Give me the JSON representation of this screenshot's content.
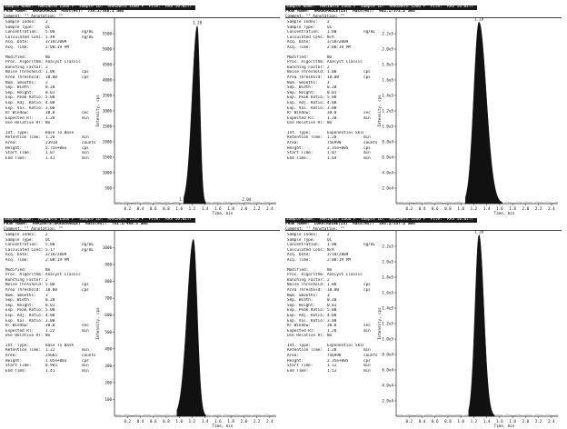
{
  "chart_data": [
    {
      "type": "line",
      "header": {
        "line1": "Sample Name: \"MARINATE LOGO F\" Sample ID: \"MARINATE LOGO F\" File: \"RAS 16.wiff\"",
        "line2": "Peak Name: \"GRADOMAOLE\" Mass(es): \"735.2/358.1 amu\"",
        "comment": "Comment: \"\"  Annotation: \"\""
      },
      "info_top": [
        [
          "Sample Index:",
          "2",
          ""
        ],
        [
          "Sample Type:",
          "QC",
          ""
        ],
        [
          "Concentration:",
          "5.00",
          "ng/mL"
        ],
        [
          "Calculated Conc:",
          "5.49",
          "ng/mL"
        ],
        [
          "Acq. Date:",
          "3/18/2009",
          ""
        ],
        [
          "Acq. Time:",
          "2:00:19 PM",
          ""
        ]
      ],
      "info_mid": [
        [
          "Modified:",
          "No",
          ""
        ],
        [
          "Proc. Algorithm:",
          "Analyst Classic",
          ""
        ],
        [
          "Bunching Factor:",
          "2",
          ""
        ],
        [
          "Noise Threshold:",
          "1.00",
          "cps"
        ],
        [
          "Area Threshold:",
          "10.00",
          "cps"
        ],
        [
          "Num. Smooths:",
          "3",
          ""
        ],
        [
          "Sep. Width:",
          "0.20",
          ""
        ],
        [
          "Sep. Height:",
          "0.01",
          ""
        ],
        [
          "Exp. Peak Ratio:",
          "5.00",
          ""
        ],
        [
          "Exp. Adj. Ratio:",
          "4.00",
          ""
        ],
        [
          "Exp. Val. Ratio:",
          "3.00",
          ""
        ],
        [
          "RT Window:",
          "30.0",
          "sec"
        ],
        [
          "Expected RT:",
          "1.28",
          "min"
        ],
        [
          "Use Relative RT:",
          "No",
          ""
        ]
      ],
      "info_bot": [
        [
          "Int. Type:",
          "Base To Base",
          ""
        ],
        [
          "Retention Time:",
          "1.28",
          "min"
        ],
        [
          "Area:",
          "23918",
          "counts"
        ],
        [
          "Height:",
          "5.75e+003",
          "cps"
        ],
        [
          "Start Time:",
          "1.07",
          "min"
        ],
        [
          "End Time:",
          "1.41",
          "min"
        ]
      ],
      "ylabel": "Intensity, cps",
      "xlabel": "Time, min",
      "xlim": [
        0.0,
        2.5
      ],
      "ylim": [
        0,
        6000
      ],
      "x_ticks": [
        "0.2",
        "0.4",
        "0.6",
        "0.8",
        "1.0",
        "1.2",
        "1.4",
        "1.6",
        "1.8",
        "2.0",
        "2.2",
        "2.4"
      ],
      "y_ticks": [
        "500",
        "1000",
        "1500",
        "2000",
        "2500",
        "3000",
        "3500",
        "4000",
        "4500",
        "5000",
        "5500"
      ],
      "peak": {
        "rt": 1.28,
        "height": 5750,
        "start": 1.07,
        "end": 1.41
      },
      "peak_labels": [
        {
          "x": 1.28,
          "text": "1.28"
        },
        {
          "x": 1.07,
          "text": "1.07"
        },
        {
          "x": 2.04,
          "text": "2.04"
        }
      ]
    },
    {
      "type": "line",
      "header": {
        "line1": "Sample Name: \"MARINATE LOGO F\" Sample ID: \"MARINATE LOGO F\" File: \"RAS 16.wiff\"",
        "line2": "Peak Name: \"GRADOMAOLE(IS)\" Mass(es): \"901.1/372.2 amu\"",
        "comment": "Comment: \"\"  Annotation: \"\""
      },
      "info_top": [
        [
          "Sample Index:",
          "2",
          ""
        ],
        [
          "Sample Type:",
          "QC",
          ""
        ],
        [
          "Concentration:",
          "1.00",
          "ng/mL"
        ],
        [
          "Calculated Conc:",
          "N/A",
          ""
        ],
        [
          "Acq. Date:",
          "3/18/2009",
          ""
        ],
        [
          "Acq. Time:",
          "2:00:19 PM",
          ""
        ]
      ],
      "info_mid": [
        [
          "Modified:",
          "No",
          ""
        ],
        [
          "Proc. Algorithm:",
          "Analyst Classic",
          ""
        ],
        [
          "Bunching Factor:",
          "2",
          ""
        ],
        [
          "Noise Threshold:",
          "1.00",
          "cps"
        ],
        [
          "Area Threshold:",
          "10.00",
          "cps"
        ],
        [
          "Num. Smooths:",
          "3",
          ""
        ],
        [
          "Sep. Width:",
          "0.20",
          ""
        ],
        [
          "Sep. Height:",
          "0.01",
          ""
        ],
        [
          "Exp. Peak Ratio:",
          "5.00",
          ""
        ],
        [
          "Exp. Adj. Ratio:",
          "4.00",
          ""
        ],
        [
          "Exp. Val. Ratio:",
          "3.00",
          ""
        ],
        [
          "RT Window:",
          "30.0",
          "sec"
        ],
        [
          "Expected RT:",
          "1.28",
          "min"
        ],
        [
          "Use Relative RT:",
          "No",
          ""
        ]
      ],
      "info_bot": [
        [
          "Int. Type:",
          "Exponential Skim",
          ""
        ],
        [
          "Retention Time:",
          "1.28",
          "min"
        ],
        [
          "Area:",
          "756990",
          "counts"
        ],
        [
          "Height:",
          "2.35e+005",
          "cps"
        ],
        [
          "Start Time:",
          "1.07",
          "min"
        ],
        [
          "End Time:",
          "1.64",
          "min"
        ]
      ],
      "ylabel": "Intensity, cps",
      "xlabel": "Time, min",
      "xlim": [
        0.0,
        2.5
      ],
      "ylim": [
        0,
        240000
      ],
      "x_ticks": [
        "0.2",
        "0.4",
        "0.6",
        "0.8",
        "1.0",
        "1.2",
        "1.4",
        "1.6",
        "1.8",
        "2.0",
        "2.2",
        "2.4"
      ],
      "y_ticks": [
        "2.0e4",
        "4.0e4",
        "6.0e4",
        "8.0e4",
        "1.0e5",
        "1.2e5",
        "1.4e5",
        "1.6e5",
        "1.8e5",
        "2.0e5",
        "2.2e5"
      ],
      "peak": {
        "rt": 1.28,
        "height": 235000,
        "start": 1.07,
        "end": 1.64
      },
      "peak_labels": [
        {
          "x": 1.28,
          "text": "1.28"
        }
      ]
    },
    {
      "type": "line",
      "header": {
        "line1": "Sample Name: \"MARINATE LOGO F\" Sample ID: \"MARINATE LOGO F\" File: \"RAS 16.wiff\"",
        "line2": "Peak Name: \"MARINATE(GRADOMAOLE)\" Mass(es): \"751.2/458.3 amu\"",
        "comment": "Comment: \"\"  Annotation: \"\""
      },
      "info_top": [
        [
          "Sample Index:",
          "2",
          ""
        ],
        [
          "Sample Type:",
          "QC",
          ""
        ],
        [
          "Concentration:",
          "5.00",
          "ng/mL"
        ],
        [
          "Calculated Conc:",
          "5.17",
          "ng/mL"
        ],
        [
          "Acq. Date:",
          "3/18/2009",
          ""
        ],
        [
          "Acq. Time:",
          "2:00:19 PM",
          ""
        ]
      ],
      "info_mid": [
        [
          "Modified:",
          "No",
          ""
        ],
        [
          "Proc. Algorithm:",
          "Analyst Classic",
          ""
        ],
        [
          "Bunching Factor:",
          "2",
          ""
        ],
        [
          "Noise Threshold:",
          "5.00",
          "cps"
        ],
        [
          "Area Threshold:",
          "10.00",
          "cps"
        ],
        [
          "Num. Smooths:",
          "3",
          ""
        ],
        [
          "Sep. Width:",
          "0.20",
          ""
        ],
        [
          "Sep. Height:",
          "0.01",
          ""
        ],
        [
          "Exp. Peak Ratio:",
          "5.00",
          ""
        ],
        [
          "Exp. Adj. Ratio:",
          "4.00",
          ""
        ],
        [
          "Exp. Val. Ratio:",
          "3.00",
          ""
        ],
        [
          "RT Window:",
          "30.0",
          "sec"
        ],
        [
          "Expected RT:",
          "1.22",
          "min"
        ],
        [
          "Use Relative RT:",
          "No",
          ""
        ]
      ],
      "info_bot": [
        [
          "Int. Type:",
          "Base To Base",
          ""
        ],
        [
          "Retention Time:",
          "1.22",
          "min"
        ],
        [
          "Area:",
          "25665",
          "counts"
        ],
        [
          "Height:",
          "1.05e+003",
          "cps"
        ],
        [
          "Start Time:",
          "0.965",
          "min"
        ],
        [
          "End Time:",
          "1.41",
          "min"
        ]
      ],
      "ylabel": "Intensity, cps",
      "xlabel": "Time, min",
      "xlim": [
        0.0,
        2.5
      ],
      "ylim": [
        0,
        1100
      ],
      "x_ticks": [
        "0.2",
        "0.4",
        "0.6",
        "0.8",
        "1.0",
        "1.2",
        "1.4",
        "1.6",
        "1.8",
        "2.0",
        "2.2",
        "2.4"
      ],
      "y_ticks": [
        "100",
        "200",
        "300",
        "400",
        "500",
        "600",
        "700",
        "800",
        "900",
        "1000"
      ],
      "peak": {
        "rt": 1.22,
        "height": 1050,
        "start": 0.965,
        "end": 1.41
      },
      "peak_labels": []
    },
    {
      "type": "line",
      "header": {
        "line1": "Sample Name: \"MARINATE LOGO F\" Sample ID: \"MARINATE LOGO F\" File: \"RAS 16.wiff\"",
        "line2": "Peak Name: \"LORATADINE(IS)\" Mass(es): \"383.1/337.2 amu\"",
        "comment": "Comment: \"\"  Annotation: \"\""
      },
      "info_top": [
        [
          "Sample Index:",
          "2",
          ""
        ],
        [
          "Sample Type:",
          "QC",
          ""
        ],
        [
          "Concentration:",
          "1.00",
          "ng/mL"
        ],
        [
          "Calculated Conc:",
          "N/A",
          ""
        ],
        [
          "Acq. Date:",
          "3/18/2009",
          ""
        ],
        [
          "Acq. Time:",
          "2:00:19 PM",
          ""
        ]
      ],
      "info_mid": [
        [
          "Modified:",
          "No",
          ""
        ],
        [
          "Proc. Algorithm:",
          "Analyst Classic",
          ""
        ],
        [
          "Bunching Factor:",
          "2",
          ""
        ],
        [
          "Noise Threshold:",
          "1.00",
          "cps"
        ],
        [
          "Area Threshold:",
          "10.00",
          "cps"
        ],
        [
          "Num. Smooths:",
          "3",
          ""
        ],
        [
          "Sep. Width:",
          "0.20",
          ""
        ],
        [
          "Sep. Height:",
          "0.01",
          ""
        ],
        [
          "Exp. Peak Ratio:",
          "5.00",
          ""
        ],
        [
          "Exp. Adj. Ratio:",
          "4.00",
          ""
        ],
        [
          "Exp. Val. Ratio:",
          "3.00",
          ""
        ],
        [
          "RT Window:",
          "30.0",
          "sec"
        ],
        [
          "Expected RT:",
          "1.28",
          "min"
        ],
        [
          "Use Relative RT:",
          "No",
          ""
        ]
      ],
      "info_bot": [
        [
          "Int. Type:",
          "Exponential Skim",
          ""
        ],
        [
          "Retention Time:",
          "1.28",
          "min"
        ],
        [
          "Area:",
          "756990",
          "counts"
        ],
        [
          "Height:",
          "2.35e+005",
          "cps"
        ],
        [
          "Start Time:",
          "1.12",
          "min"
        ],
        [
          "End Time:",
          "1.52",
          "min"
        ]
      ],
      "ylabel": "Intensity, cps",
      "xlabel": "Time, min",
      "xlim": [
        0.0,
        2.5
      ],
      "ylim": [
        0,
        240000
      ],
      "x_ticks": [
        "0.2",
        "0.4",
        "0.6",
        "0.8",
        "1.0",
        "1.2",
        "1.4",
        "1.6",
        "1.8",
        "2.0",
        "2.2",
        "2.4"
      ],
      "y_ticks": [
        "2.0e4",
        "4.0e4",
        "6.0e4",
        "8.0e4",
        "1.0e5",
        "1.2e5",
        "1.4e5",
        "1.6e5",
        "1.8e5",
        "2.0e5",
        "2.2e5"
      ],
      "peak": {
        "rt": 1.28,
        "height": 235000,
        "start": 1.12,
        "end": 1.52
      },
      "peak_labels": [
        {
          "x": 1.28,
          "text": "1.28"
        }
      ]
    }
  ],
  "colors": {
    "peak_fill": "#111111",
    "axis": "#222222",
    "header_bg": "#1a1a1a",
    "baseline_noise": "#9a9a9a"
  }
}
